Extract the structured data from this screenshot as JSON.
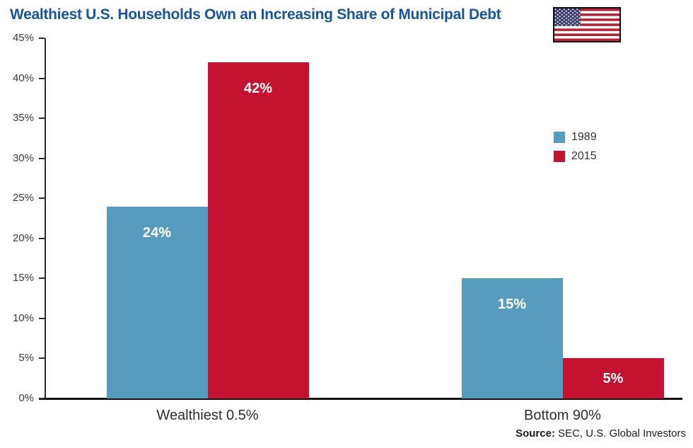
{
  "title": "Wealthiest U.S. Households Own an Increasing Share of Municipal Debt",
  "colors": {
    "title": "#17549b",
    "series_1989": "#579cbe",
    "series_2015": "#c51230",
    "axis": "#2b2b2b",
    "value_label": "#ffffff",
    "flag_red": "#b22234",
    "flag_blue": "#3c3b6e"
  },
  "source": {
    "label": "Source:",
    "text": " SEC, U.S. Global Investors"
  },
  "chart_data": {
    "type": "bar",
    "title": "Wealthiest U.S. Households Own an Increasing Share of Municipal Debt",
    "categories": [
      "Wealthiest 0.5%",
      "Bottom 90%"
    ],
    "series": [
      {
        "name": "1989",
        "color": "#579cbe",
        "values": [
          24,
          15
        ]
      },
      {
        "name": "2015",
        "color": "#c51230",
        "values": [
          42,
          5
        ]
      }
    ],
    "data_labels": [
      [
        "24%",
        "15%"
      ],
      [
        "42%",
        "5%"
      ]
    ],
    "y_ticks": [
      0,
      5,
      10,
      15,
      20,
      25,
      30,
      35,
      40,
      45
    ],
    "tick_suffix": "%",
    "ylim": [
      0,
      45
    ],
    "xlabel": "",
    "ylabel": "",
    "grid": false,
    "legend_position": "middle-right"
  }
}
